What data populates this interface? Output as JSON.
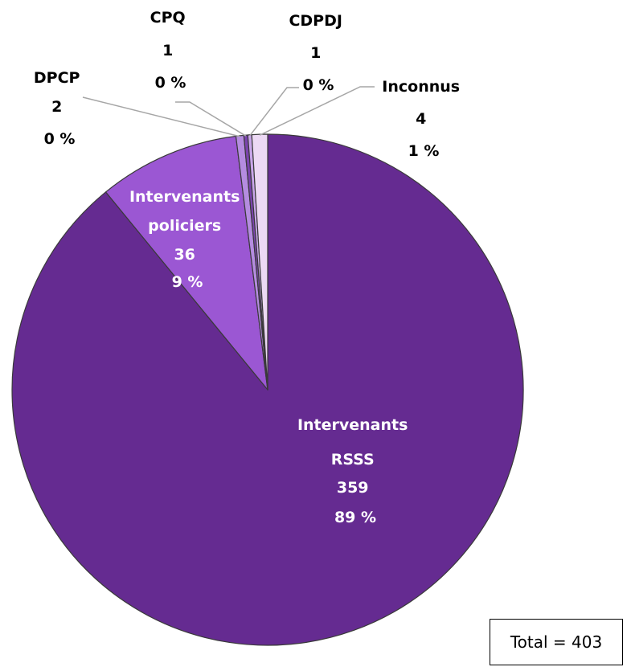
{
  "chart_data": {
    "type": "pie",
    "slices": [
      {
        "key": "rsss",
        "label_lines": [
          "Intervenants",
          "RSSS"
        ],
        "value": 359,
        "percent": "89 %",
        "color": "#652b91"
      },
      {
        "key": "policiers",
        "label_lines": [
          "Intervenants",
          "policiers"
        ],
        "value": 36,
        "percent": "9 %",
        "color": "#9b57d3"
      },
      {
        "key": "dpcp",
        "label_lines": [
          "DPCP"
        ],
        "value": 2,
        "percent": "0 %",
        "color": "#b58ce0"
      },
      {
        "key": "cpq",
        "label_lines": [
          "CPQ"
        ],
        "value": 1,
        "percent": "0 %",
        "color": "#7a44ad"
      },
      {
        "key": "cdpdj",
        "label_lines": [
          "CDPDJ"
        ],
        "value": 1,
        "percent": "0 %",
        "color": "#c9a6ea"
      },
      {
        "key": "inconnus",
        "label_lines": [
          "Inconnus"
        ],
        "value": 4,
        "percent": "1 %",
        "color": "#ecd9f4"
      }
    ],
    "total_label": "Total = 403",
    "legend": "none",
    "start_angle_deg": 0,
    "direction": "clockwise"
  }
}
